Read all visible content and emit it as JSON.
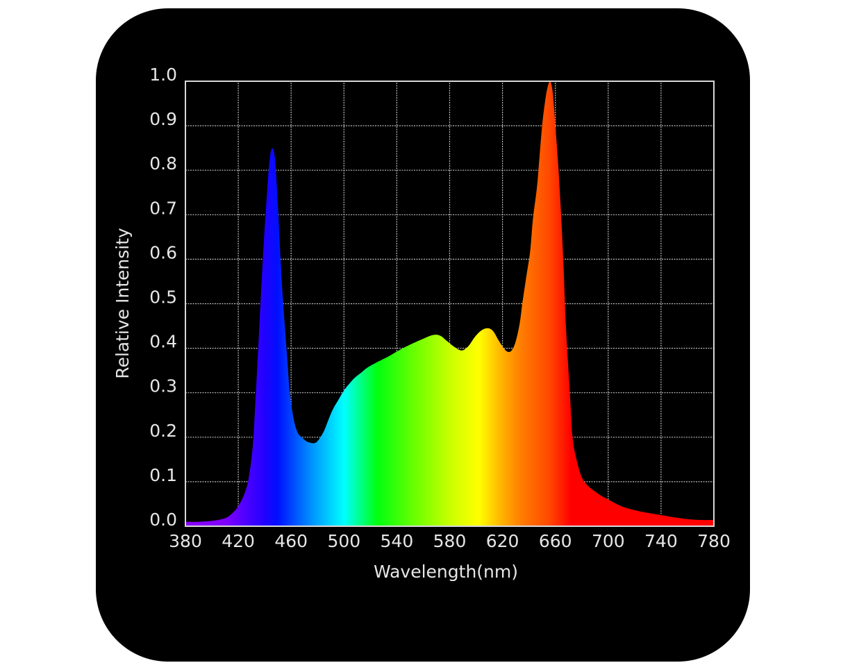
{
  "chart_data": {
    "type": "area",
    "title": "",
    "xlabel": "Wavelength(nm)",
    "ylabel": "Relative Intensity",
    "xlim": [
      380,
      780
    ],
    "ylim": [
      0.0,
      1.0
    ],
    "grid": true,
    "legend": null,
    "x_ticks": [
      "380",
      "420",
      "460",
      "500",
      "540",
      "580",
      "620",
      "660",
      "700",
      "740",
      "780"
    ],
    "y_ticks": [
      "0.0",
      "0.1",
      "0.2",
      "0.3",
      "0.4",
      "0.5",
      "0.6",
      "0.7",
      "0.8",
      "0.9",
      "1.0"
    ],
    "fill": "visible-spectrum gradient (violet to red)",
    "series": [
      {
        "name": "Relative Intensity",
        "x": [
          380,
          390,
          400,
          410,
          415,
          420,
          425,
          428,
          431,
          433,
          436,
          439,
          442,
          444,
          446,
          448,
          450,
          452,
          454,
          457,
          459,
          462,
          465,
          468,
          471,
          474,
          478,
          481,
          485,
          489,
          492,
          496,
          500,
          504,
          508,
          513,
          518,
          526,
          534,
          542,
          550,
          556,
          562,
          568,
          573,
          578,
          583,
          589,
          594,
          599,
          604,
          609,
          613,
          617,
          621,
          624,
          627,
          630,
          633,
          635,
          638,
          641,
          643,
          646,
          648,
          650,
          652,
          654,
          656,
          658,
          660,
          662,
          664,
          666,
          668,
          671,
          673,
          676,
          680,
          685,
          690,
          695,
          700,
          710,
          720,
          730,
          740,
          750,
          760,
          770,
          780
        ],
        "y": [
          0.01,
          0.01,
          0.012,
          0.018,
          0.028,
          0.045,
          0.075,
          0.11,
          0.18,
          0.28,
          0.45,
          0.62,
          0.76,
          0.83,
          0.849,
          0.82,
          0.72,
          0.6,
          0.5,
          0.38,
          0.3,
          0.24,
          0.21,
          0.2,
          0.192,
          0.188,
          0.187,
          0.195,
          0.215,
          0.245,
          0.265,
          0.285,
          0.305,
          0.32,
          0.333,
          0.345,
          0.357,
          0.37,
          0.382,
          0.396,
          0.408,
          0.416,
          0.424,
          0.43,
          0.428,
          0.416,
          0.404,
          0.395,
          0.404,
          0.425,
          0.44,
          0.445,
          0.438,
          0.418,
          0.4,
          0.392,
          0.395,
          0.415,
          0.455,
          0.5,
          0.56,
          0.62,
          0.69,
          0.76,
          0.83,
          0.9,
          0.95,
          0.985,
          1.0,
          0.975,
          0.9,
          0.82,
          0.72,
          0.6,
          0.45,
          0.3,
          0.2,
          0.15,
          0.11,
          0.09,
          0.078,
          0.068,
          0.06,
          0.045,
          0.036,
          0.03,
          0.025,
          0.02,
          0.016,
          0.014,
          0.014
        ]
      }
    ],
    "peaks": [
      {
        "wavelength_nm": 446,
        "intensity": 0.85,
        "color": "blue"
      },
      {
        "wavelength_nm": 568,
        "intensity": 0.43,
        "color": "green-yellow"
      },
      {
        "wavelength_nm": 609,
        "intensity": 0.445,
        "color": "yellow-orange"
      },
      {
        "wavelength_nm": 656,
        "intensity": 1.0,
        "color": "red"
      }
    ],
    "gradient_stops": [
      {
        "nm": 380,
        "color": "#8a00ff"
      },
      {
        "nm": 410,
        "color": "#8000ff"
      },
      {
        "nm": 440,
        "color": "#2000ff"
      },
      {
        "nm": 450,
        "color": "#0010ff"
      },
      {
        "nm": 475,
        "color": "#0090ff"
      },
      {
        "nm": 500,
        "color": "#00ffff"
      },
      {
        "nm": 525,
        "color": "#00ff10"
      },
      {
        "nm": 555,
        "color": "#70ff00"
      },
      {
        "nm": 580,
        "color": "#c8ff00"
      },
      {
        "nm": 602,
        "color": "#ffff00"
      },
      {
        "nm": 620,
        "color": "#ffb000"
      },
      {
        "nm": 635,
        "color": "#ff7a00"
      },
      {
        "nm": 655,
        "color": "#ff4a00"
      },
      {
        "nm": 672,
        "color": "#ff0000"
      },
      {
        "nm": 780,
        "color": "#ff0000"
      }
    ]
  },
  "colors": {
    "panel_background": "#000000",
    "page_background": "#ffffff",
    "axis_frame": "#d8d8d8",
    "gridline": "#bdbdbd",
    "text": "#e6e6e6"
  }
}
